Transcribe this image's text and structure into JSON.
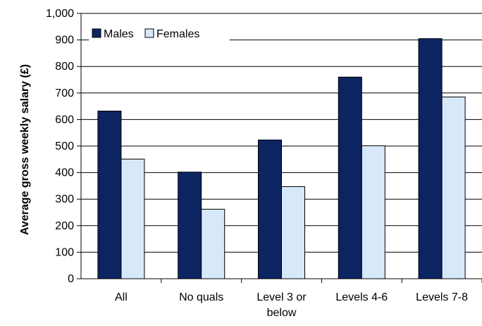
{
  "chart_data": {
    "type": "bar",
    "categories": [
      "All",
      "No quals",
      "Level 3 or below",
      "Levels 4-6",
      "Levels 7-8"
    ],
    "category_lines": [
      [
        "All"
      ],
      [
        "No quals"
      ],
      [
        "Level 3 or",
        "below"
      ],
      [
        "Levels 4-6"
      ],
      [
        "Levels 7-8"
      ]
    ],
    "series": [
      {
        "name": "Males",
        "color": "#0d2462",
        "values": [
          632,
          402,
          523,
          760,
          905
        ]
      },
      {
        "name": "Females",
        "color": "#d7e8fb",
        "values": [
          451,
          262,
          347,
          501,
          685
        ]
      }
    ],
    "ylabel": "Average gross weekly salary (£)",
    "xlabel": "",
    "ylim": [
      0,
      1000
    ],
    "yticks": [
      0,
      100,
      200,
      300,
      400,
      500,
      600,
      700,
      800,
      900,
      1000
    ],
    "ytick_labels": [
      "0",
      "100",
      "200",
      "300",
      "400",
      "500",
      "600",
      "700",
      "800",
      "900",
      "1,000"
    ],
    "grid": "horizontal-lines",
    "legend_position": "top-left-inside"
  }
}
